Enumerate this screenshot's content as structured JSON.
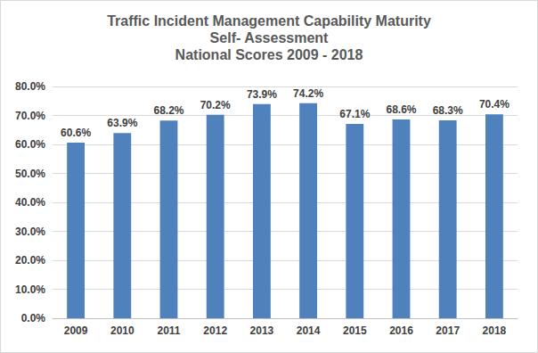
{
  "chart_data": {
    "type": "bar",
    "title": "Traffic Incident Management Capability Maturity\nSelf- Assessment\nNational Scores 2009 - 2018",
    "categories": [
      "2009",
      "2010",
      "2011",
      "2012",
      "2013",
      "2014",
      "2015",
      "2016",
      "2017",
      "2018"
    ],
    "values": [
      60.6,
      63.9,
      68.2,
      70.2,
      73.9,
      74.2,
      67.1,
      68.6,
      68.3,
      70.4
    ],
    "value_labels": [
      "60.6%",
      "63.9%",
      "68.2%",
      "70.2%",
      "73.9%",
      "74.2%",
      "67.1%",
      "68.6%",
      "68.3%",
      "70.4%"
    ],
    "color": "#4f81bd",
    "ylim": [
      0,
      80
    ],
    "yticks": [
      {
        "value": 0,
        "label": "0.0%"
      },
      {
        "value": 10,
        "label": "10.0%"
      },
      {
        "value": 20,
        "label": "20.0%"
      },
      {
        "value": 30,
        "label": "30.0%"
      },
      {
        "value": 40,
        "label": "40.0%"
      },
      {
        "value": 50,
        "label": "50.0%"
      },
      {
        "value": 60,
        "label": "60.0%"
      },
      {
        "value": 70,
        "label": "70.0%"
      },
      {
        "value": 80,
        "label": "80.0%"
      }
    ],
    "grid": true,
    "data_labels": true
  }
}
